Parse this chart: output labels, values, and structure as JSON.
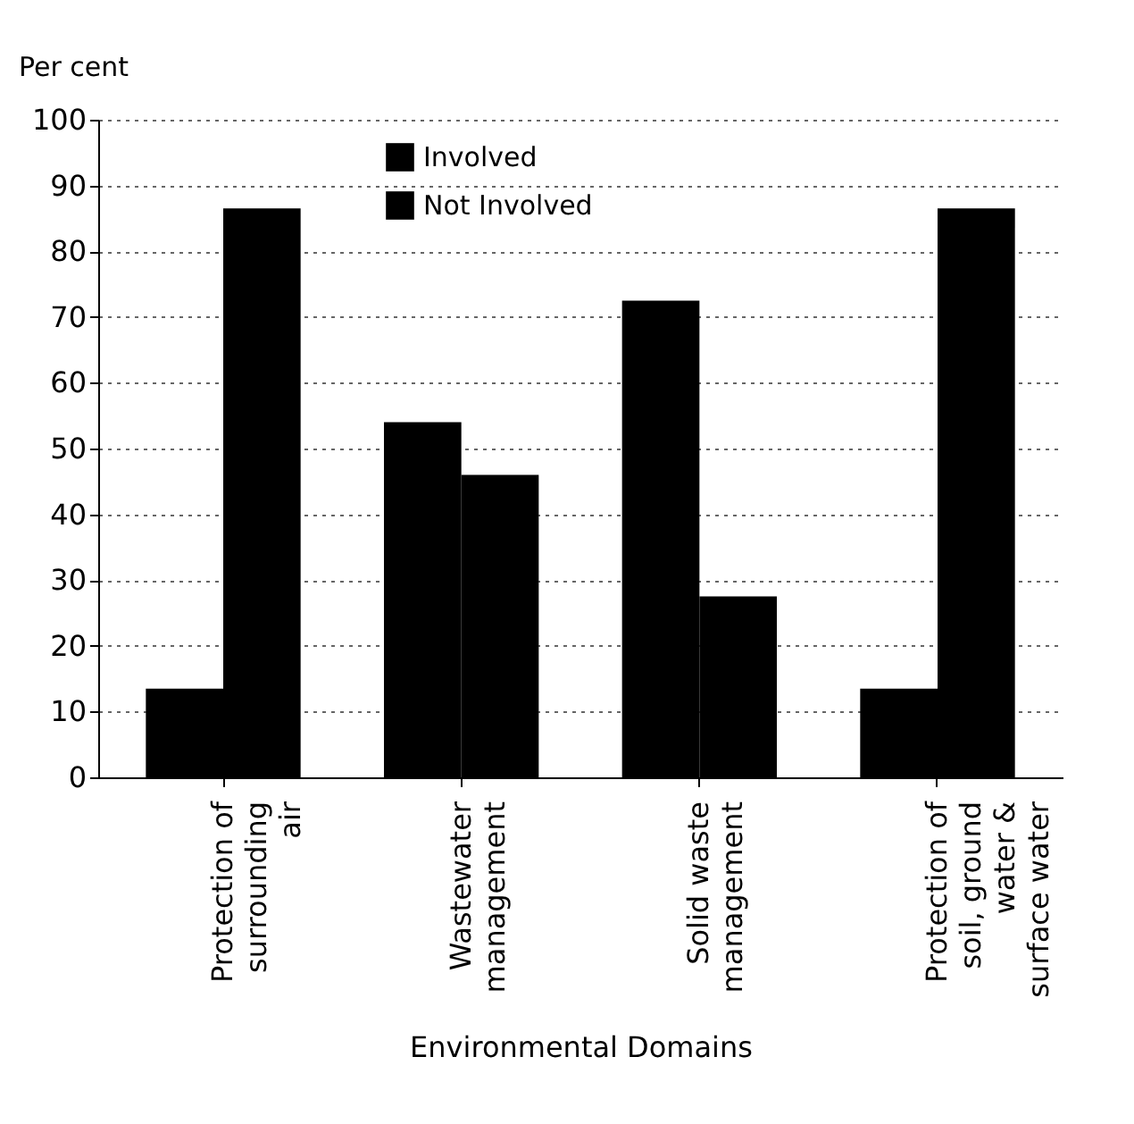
{
  "chart_data": {
    "type": "bar",
    "xlabel": "Environmental Domains",
    "ylabel": "Per cent",
    "categories": [
      "Protection of surrounding air",
      "Wastewater management",
      "Solid waste management",
      "Protection of soil, ground water & surface water"
    ],
    "series": [
      {
        "name": "Involved",
        "color": "#000000",
        "values": [
          13.5,
          54,
          72.5,
          13.5
        ]
      },
      {
        "name": "Not Involved",
        "color": "#000000",
        "values": [
          86.5,
          46,
          27.5,
          86.5
        ]
      }
    ],
    "ylim": [
      0,
      100
    ],
    "yticks": [
      0,
      10,
      20,
      30,
      40,
      50,
      60,
      70,
      80,
      90,
      100
    ],
    "grid": "y",
    "legend": "top left"
  }
}
